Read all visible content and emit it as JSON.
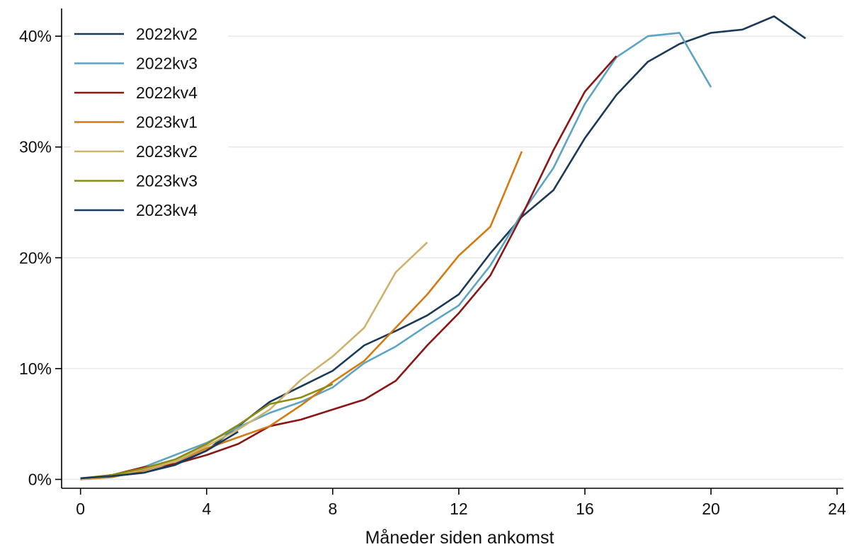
{
  "chart_data": {
    "type": "line",
    "title": "",
    "xlabel": "Måneder siden ankomst",
    "ylabel": "",
    "xlim": [
      -0.6,
      24.2
    ],
    "ylim": [
      -0.8,
      42.5
    ],
    "x_ticks": [
      0,
      4,
      8,
      12,
      16,
      20,
      24
    ],
    "x_tick_labels": [
      "0",
      "4",
      "8",
      "12",
      "16",
      "20",
      "24"
    ],
    "y_ticks": [
      0,
      10,
      20,
      30,
      40
    ],
    "y_tick_labels": [
      "0%",
      "10%",
      "20%",
      "30%",
      "40%"
    ],
    "grid": "horizontal",
    "legend_position": "top-left",
    "series": [
      {
        "name": "2022kv2",
        "color": "#1a3a57",
        "x": [
          0,
          1,
          2,
          3,
          4,
          5,
          6,
          7,
          8,
          9,
          10,
          11,
          12,
          13,
          14,
          15,
          16,
          17,
          18,
          19,
          20,
          21,
          22,
          23
        ],
        "values": [
          0.1,
          0.3,
          0.6,
          1.4,
          2.6,
          4.8,
          7.0,
          8.4,
          9.8,
          12.1,
          13.4,
          14.8,
          16.7,
          20.4,
          23.7,
          26.1,
          30.8,
          34.7,
          37.7,
          39.3,
          40.3,
          40.6,
          41.8,
          39.8
        ]
      },
      {
        "name": "2022kv3",
        "color": "#5ba4c6",
        "x": [
          0,
          1,
          2,
          3,
          4,
          5,
          6,
          7,
          8,
          9,
          10,
          11,
          12,
          13,
          14,
          15,
          16,
          17,
          18,
          19,
          20
        ],
        "values": [
          0.0,
          0.3,
          1.1,
          2.2,
          3.3,
          4.7,
          6.0,
          7.0,
          8.3,
          10.5,
          12.0,
          13.9,
          15.7,
          19.3,
          24.0,
          28.1,
          33.9,
          38.1,
          40.0,
          40.3,
          35.4
        ]
      },
      {
        "name": "2022kv4",
        "color": "#8c1515",
        "x": [
          0,
          1,
          2,
          3,
          4,
          5,
          6,
          7,
          8,
          9,
          10,
          11,
          12,
          13,
          14,
          15,
          16,
          17
        ],
        "values": [
          0.0,
          0.4,
          1.1,
          1.4,
          2.2,
          3.2,
          4.8,
          5.4,
          6.3,
          7.2,
          8.9,
          12.1,
          15.0,
          18.4,
          23.8,
          29.7,
          35.0,
          38.2
        ]
      },
      {
        "name": "2023kv1",
        "color": "#d47a10",
        "x": [
          0,
          1,
          2,
          3,
          4,
          5,
          6,
          7,
          8,
          9,
          10,
          11,
          12,
          13,
          14
        ],
        "values": [
          0.0,
          0.2,
          0.8,
          1.6,
          2.8,
          3.8,
          4.8,
          6.7,
          8.8,
          10.7,
          13.7,
          16.7,
          20.2,
          22.8,
          29.6
        ]
      },
      {
        "name": "2023kv2",
        "color": "#cdb26b",
        "x": [
          0,
          1,
          2,
          3,
          4,
          5,
          6,
          7,
          8,
          9,
          10,
          11
        ],
        "values": [
          0.0,
          0.3,
          0.9,
          1.6,
          3.0,
          4.5,
          6.3,
          9.0,
          11.1,
          13.7,
          18.7,
          21.4
        ]
      },
      {
        "name": "2023kv3",
        "color": "#8c8c10",
        "x": [
          0,
          1,
          2,
          3,
          4,
          5,
          6,
          7,
          8
        ],
        "values": [
          0.1,
          0.4,
          1.0,
          1.8,
          3.2,
          4.9,
          6.8,
          7.4,
          8.6
        ]
      },
      {
        "name": "2023kv4",
        "color": "#1a3a57",
        "x": [
          0,
          1,
          2,
          3,
          4,
          5
        ],
        "values": [
          0.1,
          0.3,
          0.6,
          1.3,
          2.6,
          4.3
        ]
      }
    ]
  }
}
